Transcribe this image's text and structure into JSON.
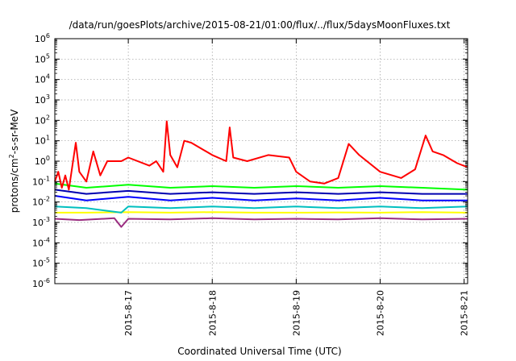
{
  "chart_data": {
    "type": "line",
    "title": "/data/run/goesPlots/archive/2015-08-21/01:00/flux/../flux/5daysMoonFluxes.txt",
    "xlabel": "Coordinated Universal Time (UTC)",
    "ylabel": {
      "prefix": "protons/cm",
      "sup": "2",
      "suffix": "-s-sr-MeV"
    },
    "x_domain": [
      "2015-08-16T03:00",
      "2015-08-21T01:00"
    ],
    "x_ticks": [
      "2015-8-17",
      "2015-8-18",
      "2015-8-19",
      "2015-8-20",
      "2015-8-21"
    ],
    "y_scale": "log",
    "y_ticks": [
      {
        "base": "10",
        "exp": "6"
      },
      {
        "base": "10",
        "exp": "5"
      },
      {
        "base": "10",
        "exp": "4"
      },
      {
        "base": "10",
        "exp": "3"
      },
      {
        "base": "10",
        "exp": "2"
      },
      {
        "base": "10",
        "exp": "1"
      },
      {
        "base": "10",
        "exp": "0"
      },
      {
        "base": "10",
        "exp": "-1"
      },
      {
        "base": "10",
        "exp": "-2"
      },
      {
        "base": "10",
        "exp": "-3"
      },
      {
        "base": "10",
        "exp": "-4"
      },
      {
        "base": "10",
        "exp": "-5"
      },
      {
        "base": "10",
        "exp": "-6"
      }
    ],
    "ylim": [
      1e-06,
      1000000
    ],
    "grid": true,
    "legend": "none",
    "series": [
      {
        "color": "#ffff00",
        "points": [
          [
            "2015-08-16T03:00",
            0.003
          ],
          [
            "2015-08-16T12:00",
            0.003
          ],
          [
            "2015-08-17T00:00",
            0.0032
          ],
          [
            "2015-08-17T12:00",
            0.003
          ],
          [
            "2015-08-18T00:00",
            0.0032
          ],
          [
            "2015-08-18T12:00",
            0.003
          ],
          [
            "2015-08-19T00:00",
            0.003
          ],
          [
            "2015-08-19T12:00",
            0.0031
          ],
          [
            "2015-08-20T00:00",
            0.003
          ],
          [
            "2015-08-20T12:00",
            0.0032
          ],
          [
            "2015-08-21T01:00",
            0.003
          ]
        ]
      },
      {
        "color": "#9a2c80",
        "points": [
          [
            "2015-08-16T03:00",
            0.0015
          ],
          [
            "2015-08-16T10:00",
            0.0013
          ],
          [
            "2015-08-16T20:00",
            0.0016
          ],
          [
            "2015-08-16T22:00",
            0.0006
          ],
          [
            "2015-08-17T00:00",
            0.0015
          ],
          [
            "2015-08-17T12:00",
            0.0014
          ],
          [
            "2015-08-18T00:00",
            0.0016
          ],
          [
            "2015-08-18T12:00",
            0.0014
          ],
          [
            "2015-08-19T00:00",
            0.0015
          ],
          [
            "2015-08-19T12:00",
            0.0014
          ],
          [
            "2015-08-20T00:00",
            0.0016
          ],
          [
            "2015-08-20T12:00",
            0.0014
          ],
          [
            "2015-08-21T01:00",
            0.0015
          ]
        ]
      },
      {
        "color": "#00bfbf",
        "points": [
          [
            "2015-08-16T03:00",
            0.006
          ],
          [
            "2015-08-16T12:00",
            0.005
          ],
          [
            "2015-08-16T22:00",
            0.003
          ],
          [
            "2015-08-17T00:00",
            0.006
          ],
          [
            "2015-08-17T12:00",
            0.005
          ],
          [
            "2015-08-18T00:00",
            0.006
          ],
          [
            "2015-08-18T12:00",
            0.005
          ],
          [
            "2015-08-19T00:00",
            0.006
          ],
          [
            "2015-08-19T12:00",
            0.005
          ],
          [
            "2015-08-20T00:00",
            0.006
          ],
          [
            "2015-08-20T12:00",
            0.005
          ],
          [
            "2015-08-21T01:00",
            0.006
          ]
        ]
      },
      {
        "color": "#00ff00",
        "points": [
          [
            "2015-08-16T03:00",
            0.08
          ],
          [
            "2015-08-16T12:00",
            0.05
          ],
          [
            "2015-08-17T00:00",
            0.07
          ],
          [
            "2015-08-17T12:00",
            0.05
          ],
          [
            "2015-08-18T00:00",
            0.06
          ],
          [
            "2015-08-18T12:00",
            0.05
          ],
          [
            "2015-08-19T00:00",
            0.06
          ],
          [
            "2015-08-19T12:00",
            0.05
          ],
          [
            "2015-08-20T00:00",
            0.06
          ],
          [
            "2015-08-20T12:00",
            0.05
          ],
          [
            "2015-08-21T01:00",
            0.04
          ]
        ]
      },
      {
        "color": "#0000ff",
        "points": [
          [
            "2015-08-16T03:00",
            0.02
          ],
          [
            "2015-08-16T12:00",
            0.012
          ],
          [
            "2015-08-17T00:00",
            0.018
          ],
          [
            "2015-08-17T12:00",
            0.012
          ],
          [
            "2015-08-18T00:00",
            0.016
          ],
          [
            "2015-08-18T12:00",
            0.012
          ],
          [
            "2015-08-19T00:00",
            0.015
          ],
          [
            "2015-08-19T12:00",
            0.012
          ],
          [
            "2015-08-20T00:00",
            0.016
          ],
          [
            "2015-08-20T12:00",
            0.012
          ],
          [
            "2015-08-21T01:00",
            0.012
          ]
        ]
      },
      {
        "color": "#0000b0",
        "points": [
          [
            "2015-08-16T03:00",
            0.04
          ],
          [
            "2015-08-16T12:00",
            0.025
          ],
          [
            "2015-08-17T00:00",
            0.035
          ],
          [
            "2015-08-17T12:00",
            0.025
          ],
          [
            "2015-08-18T00:00",
            0.03
          ],
          [
            "2015-08-18T12:00",
            0.025
          ],
          [
            "2015-08-19T00:00",
            0.03
          ],
          [
            "2015-08-19T12:00",
            0.025
          ],
          [
            "2015-08-20T00:00",
            0.03
          ],
          [
            "2015-08-20T12:00",
            0.025
          ],
          [
            "2015-08-21T01:00",
            0.025
          ]
        ]
      },
      {
        "color": "#ff0000",
        "points": [
          [
            "2015-08-16T03:00",
            0.1
          ],
          [
            "2015-08-16T04:00",
            0.3
          ],
          [
            "2015-08-16T05:00",
            0.05
          ],
          [
            "2015-08-16T06:00",
            0.2
          ],
          [
            "2015-08-16T07:00",
            0.04
          ],
          [
            "2015-08-16T09:00",
            8
          ],
          [
            "2015-08-16T10:00",
            0.3
          ],
          [
            "2015-08-16T12:00",
            0.1
          ],
          [
            "2015-08-16T14:00",
            3
          ],
          [
            "2015-08-16T16:00",
            0.2
          ],
          [
            "2015-08-16T18:00",
            1
          ],
          [
            "2015-08-16T22:00",
            1
          ],
          [
            "2015-08-17T00:00",
            1.5
          ],
          [
            "2015-08-17T06:00",
            0.6
          ],
          [
            "2015-08-17T08:00",
            1
          ],
          [
            "2015-08-17T10:00",
            0.3
          ],
          [
            "2015-08-17T11:00",
            90
          ],
          [
            "2015-08-17T12:00",
            2
          ],
          [
            "2015-08-17T14:00",
            0.5
          ],
          [
            "2015-08-17T16:00",
            10
          ],
          [
            "2015-08-17T18:00",
            8
          ],
          [
            "2015-08-18T00:00",
            2
          ],
          [
            "2015-08-18T04:00",
            1
          ],
          [
            "2015-08-18T05:00",
            45
          ],
          [
            "2015-08-18T06:00",
            1.5
          ],
          [
            "2015-08-18T10:00",
            1
          ],
          [
            "2015-08-18T16:00",
            2
          ],
          [
            "2015-08-18T22:00",
            1.5
          ],
          [
            "2015-08-19T00:00",
            0.3
          ],
          [
            "2015-08-19T04:00",
            0.1
          ],
          [
            "2015-08-19T08:00",
            0.08
          ],
          [
            "2015-08-19T12:00",
            0.15
          ],
          [
            "2015-08-19T15:00",
            7
          ],
          [
            "2015-08-19T18:00",
            2
          ],
          [
            "2015-08-20T00:00",
            0.3
          ],
          [
            "2015-08-20T06:00",
            0.15
          ],
          [
            "2015-08-20T10:00",
            0.4
          ],
          [
            "2015-08-20T13:00",
            18
          ],
          [
            "2015-08-20T15:00",
            3
          ],
          [
            "2015-08-20T18:00",
            2
          ],
          [
            "2015-08-20T22:00",
            0.8
          ],
          [
            "2015-08-21T01:00",
            0.5
          ]
        ]
      }
    ]
  }
}
